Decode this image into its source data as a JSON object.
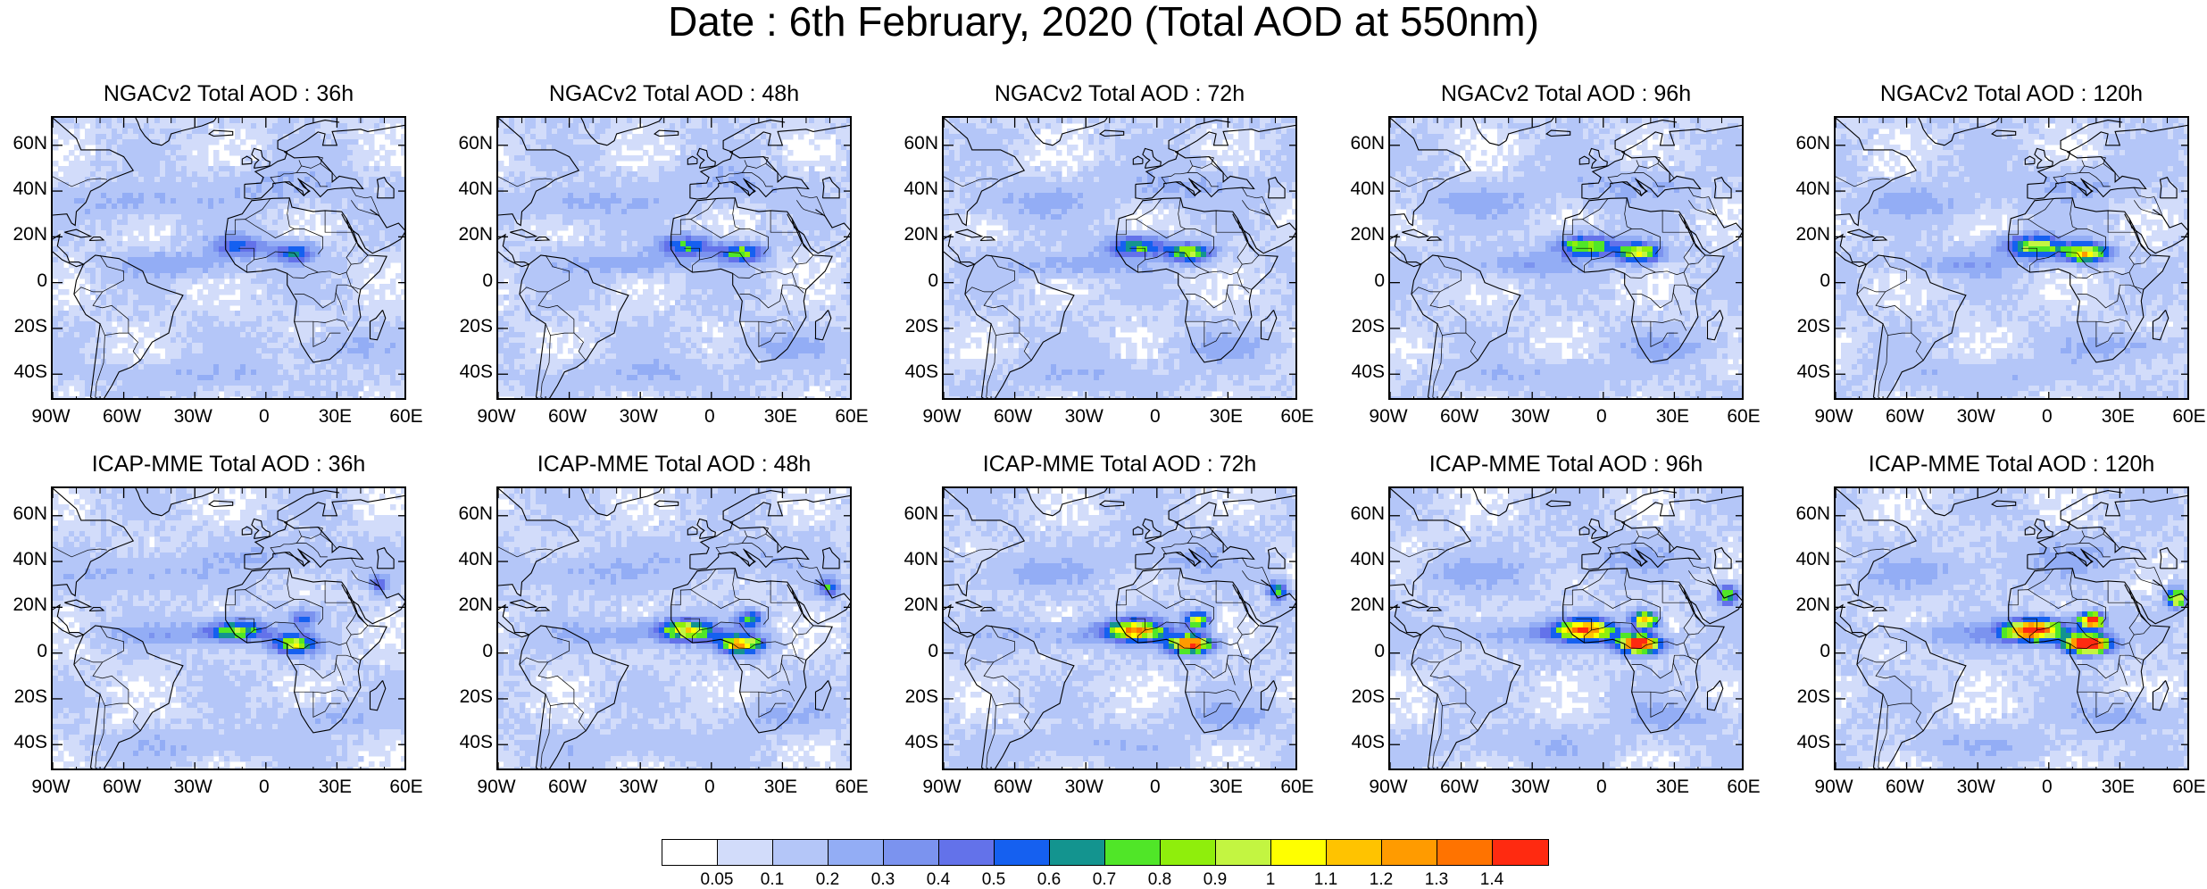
{
  "title": "Date : 6th February, 2020 (Total AOD at 550nm)",
  "lat_labels": [
    "60N",
    "40N",
    "20N",
    "0",
    "20S",
    "40S"
  ],
  "lon_labels": [
    "90W",
    "60W",
    "30W",
    "0",
    "30E",
    "60E"
  ],
  "panels": [
    {
      "title": "NGACv2 Total AOD : 36h"
    },
    {
      "title": "NGACv2 Total AOD : 48h"
    },
    {
      "title": "NGACv2 Total AOD : 72h"
    },
    {
      "title": "NGACv2 Total AOD : 96h"
    },
    {
      "title": "NGACv2 Total AOD : 120h"
    },
    {
      "title": "ICAP-MME Total AOD : 36h"
    },
    {
      "title": "ICAP-MME Total AOD : 48h"
    },
    {
      "title": "ICAP-MME Total AOD : 72h"
    },
    {
      "title": "ICAP-MME Total AOD : 96h"
    },
    {
      "title": "ICAP-MME Total AOD : 120h"
    }
  ],
  "colorbar": {
    "labels": [
      "0.05",
      "0.1",
      "0.2",
      "0.3",
      "0.4",
      "0.5",
      "0.6",
      "0.7",
      "0.8",
      "0.9",
      "1",
      "1.1",
      "1.2",
      "1.3",
      "1.4"
    ],
    "colors": [
      "#ffffff",
      "#d2dcfa",
      "#b4c6f8",
      "#93adf5",
      "#7b93ef",
      "#6372ea",
      "#1560f0",
      "#13948f",
      "#50e628",
      "#8fee0c",
      "#c3f541",
      "#ffff00",
      "#ffc300",
      "#ff9b00",
      "#ff7300",
      "#ff2a10"
    ]
  }
}
